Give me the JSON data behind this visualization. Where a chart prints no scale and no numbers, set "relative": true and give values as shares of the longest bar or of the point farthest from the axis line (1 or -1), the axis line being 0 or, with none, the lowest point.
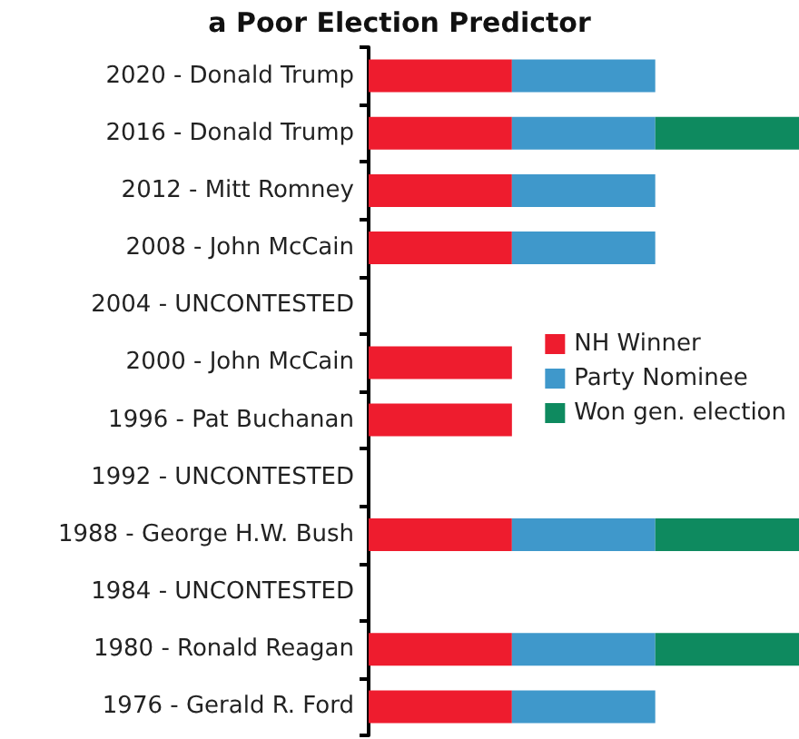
{
  "chart_data": {
    "type": "bar",
    "orientation": "horizontal",
    "stacked": true,
    "relative": true,
    "title": "a Poor Election Predictor",
    "categories": [
      "2020 - Donald Trump",
      "2016 - Donald Trump",
      "2012 - Mitt Romney",
      "2008 - John McCain",
      "2004 - UNCONTESTED",
      "2000 - John McCain",
      "1996 - Pat Buchanan",
      "1992 - UNCONTESTED",
      "1988 - George H.W. Bush",
      "1984 - UNCONTESTED",
      "1980 - Ronald Reagan",
      "1976 - Gerald R. Ford"
    ],
    "series": [
      {
        "name": "NH Winner",
        "color": "#ee1c2e",
        "values": [
          0.333,
          0.333,
          0.333,
          0.333,
          null,
          0.333,
          0.333,
          null,
          0.333,
          null,
          0.333,
          0.333
        ]
      },
      {
        "name": "Party Nominee",
        "color": "#3f98cb",
        "values": [
          0.333,
          0.333,
          0.333,
          0.333,
          null,
          null,
          null,
          null,
          0.333,
          null,
          0.333,
          0.333
        ]
      },
      {
        "name": "Won gen. election",
        "color": "#0e8a5f",
        "values": [
          null,
          0.334,
          null,
          null,
          null,
          null,
          null,
          null,
          0.334,
          null,
          0.334,
          null
        ]
      }
    ],
    "legend": "right"
  }
}
